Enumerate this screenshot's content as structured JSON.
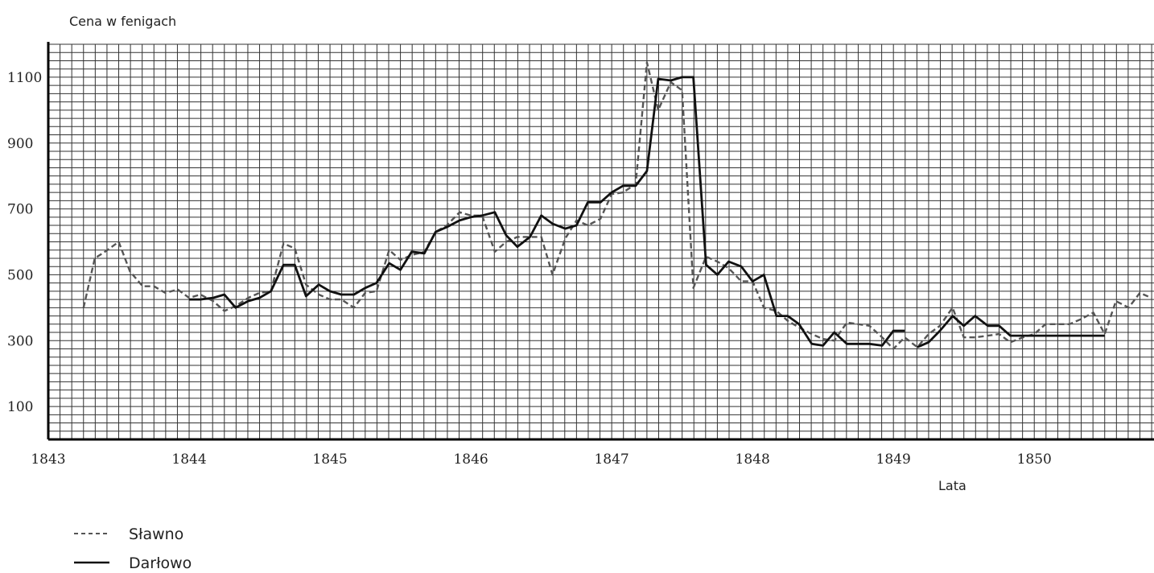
{
  "chart_data": {
    "type": "line",
    "title": "",
    "ylabel": "Cena w fenigach",
    "xlabel": "Lata",
    "x_ticks": [
      1843,
      1844,
      1845,
      1846,
      1847,
      1848,
      1849,
      1850
    ],
    "y_ticks": [
      100,
      300,
      500,
      700,
      900,
      1100
    ],
    "xlim": [
      1843,
      1850.85
    ],
    "ylim": [
      0,
      1200
    ],
    "grid": true,
    "legend_position": "bottom-left",
    "series": [
      {
        "name": "Sławno",
        "style": "dashed",
        "color": "#555555",
        "points": [
          [
            1843.25,
            400
          ],
          [
            1843.33,
            550
          ],
          [
            1843.42,
            575
          ],
          [
            1843.5,
            600
          ],
          [
            1843.58,
            510
          ],
          [
            1843.67,
            465
          ],
          [
            1843.75,
            465
          ],
          [
            1843.83,
            445
          ],
          [
            1843.92,
            455
          ],
          [
            1844.0,
            430
          ],
          [
            1844.08,
            440
          ],
          [
            1844.17,
            420
          ],
          [
            1844.25,
            390
          ],
          [
            1844.33,
            405
          ],
          [
            1844.42,
            430
          ],
          [
            1844.5,
            445
          ],
          [
            1844.58,
            450
          ],
          [
            1844.67,
            595
          ],
          [
            1844.75,
            580
          ],
          [
            1844.83,
            470
          ],
          [
            1844.92,
            440
          ],
          [
            1845.0,
            425
          ],
          [
            1845.08,
            425
          ],
          [
            1845.17,
            400
          ],
          [
            1845.25,
            445
          ],
          [
            1845.33,
            450
          ],
          [
            1845.42,
            575
          ],
          [
            1845.5,
            545
          ],
          [
            1845.58,
            560
          ],
          [
            1845.67,
            570
          ],
          [
            1845.75,
            630
          ],
          [
            1845.83,
            650
          ],
          [
            1845.92,
            690
          ],
          [
            1846.0,
            680
          ],
          [
            1846.08,
            680
          ],
          [
            1846.17,
            570
          ],
          [
            1846.25,
            600
          ],
          [
            1846.33,
            615
          ],
          [
            1846.42,
            615
          ],
          [
            1846.5,
            615
          ],
          [
            1846.58,
            500
          ],
          [
            1846.67,
            610
          ],
          [
            1846.75,
            665
          ],
          [
            1846.83,
            650
          ],
          [
            1846.92,
            670
          ],
          [
            1847.0,
            745
          ],
          [
            1847.08,
            750
          ],
          [
            1847.17,
            775
          ],
          [
            1847.25,
            1145
          ],
          [
            1847.33,
            1000
          ],
          [
            1847.42,
            1085
          ],
          [
            1847.5,
            1060
          ],
          [
            1847.58,
            460
          ],
          [
            1847.67,
            555
          ],
          [
            1847.75,
            540
          ],
          [
            1847.83,
            520
          ],
          [
            1847.92,
            480
          ],
          [
            1848.0,
            480
          ],
          [
            1848.08,
            400
          ],
          [
            1848.17,
            390
          ],
          [
            1848.25,
            360
          ],
          [
            1848.33,
            340
          ],
          [
            1848.42,
            320
          ],
          [
            1848.5,
            305
          ],
          [
            1848.58,
            300
          ],
          [
            1848.67,
            355
          ],
          [
            1848.75,
            350
          ],
          [
            1848.83,
            345
          ],
          [
            1848.92,
            310
          ],
          [
            1849.0,
            275
          ],
          [
            1849.08,
            310
          ],
          [
            1849.17,
            280
          ],
          [
            1849.25,
            320
          ],
          [
            1849.33,
            345
          ],
          [
            1849.42,
            400
          ],
          [
            1849.5,
            310
          ],
          [
            1849.58,
            310
          ],
          [
            1849.67,
            315
          ],
          [
            1849.75,
            320
          ],
          [
            1849.83,
            295
          ],
          [
            1849.92,
            310
          ],
          [
            1850.0,
            320
          ],
          [
            1850.08,
            350
          ],
          [
            1850.17,
            350
          ],
          [
            1850.25,
            350
          ],
          [
            1850.33,
            365
          ],
          [
            1850.42,
            385
          ],
          [
            1850.5,
            320
          ],
          [
            1850.58,
            420
          ],
          [
            1850.67,
            400
          ],
          [
            1850.75,
            445
          ],
          [
            1850.83,
            430
          ]
        ]
      },
      {
        "name": "Darłowo",
        "style": "solid",
        "color": "#111111",
        "points": [
          [
            1844.0,
            425
          ],
          [
            1844.08,
            425
          ],
          [
            1844.17,
            430
          ],
          [
            1844.25,
            440
          ],
          [
            1844.33,
            400
          ],
          [
            1844.42,
            420
          ],
          [
            1844.5,
            430
          ],
          [
            1844.58,
            450
          ],
          [
            1844.67,
            530
          ],
          [
            1844.75,
            530
          ],
          [
            1844.83,
            435
          ],
          [
            1844.92,
            470
          ],
          [
            1845.0,
            450
          ],
          [
            1845.08,
            440
          ],
          [
            1845.17,
            440
          ],
          [
            1845.25,
            460
          ],
          [
            1845.33,
            475
          ],
          [
            1845.42,
            535
          ],
          [
            1845.5,
            515
          ],
          [
            1845.58,
            570
          ],
          [
            1845.67,
            565
          ],
          [
            1845.75,
            630
          ],
          [
            1845.83,
            645
          ],
          [
            1845.92,
            665
          ],
          [
            1846.0,
            675
          ],
          [
            1846.08,
            680
          ],
          [
            1846.17,
            690
          ],
          [
            1846.25,
            620
          ],
          [
            1846.33,
            585
          ],
          [
            1846.42,
            615
          ],
          [
            1846.5,
            680
          ],
          [
            1846.58,
            655
          ],
          [
            1846.67,
            640
          ],
          [
            1846.75,
            650
          ],
          [
            1846.83,
            720
          ],
          [
            1846.92,
            720
          ],
          [
            1847.0,
            750
          ],
          [
            1847.08,
            770
          ],
          [
            1847.17,
            770
          ],
          [
            1847.25,
            815
          ],
          [
            1847.33,
            1095
          ],
          [
            1847.42,
            1090
          ],
          [
            1847.5,
            1100
          ],
          [
            1847.58,
            1100
          ],
          [
            1847.67,
            530
          ],
          [
            1847.75,
            500
          ],
          [
            1847.83,
            540
          ],
          [
            1847.92,
            525
          ],
          [
            1848.0,
            480
          ],
          [
            1848.08,
            500
          ],
          [
            1848.17,
            375
          ],
          [
            1848.25,
            375
          ],
          [
            1848.33,
            350
          ],
          [
            1848.42,
            290
          ],
          [
            1848.5,
            285
          ],
          [
            1848.58,
            325
          ],
          [
            1848.67,
            290
          ],
          [
            1848.75,
            290
          ],
          [
            1848.83,
            290
          ],
          [
            1848.92,
            285
          ],
          [
            1849.0,
            330
          ],
          [
            1849.08,
            330
          ],
          null,
          [
            1849.17,
            280
          ],
          [
            1849.25,
            295
          ],
          [
            1849.33,
            330
          ],
          [
            1849.42,
            375
          ],
          [
            1849.5,
            345
          ],
          [
            1849.58,
            375
          ],
          [
            1849.67,
            345
          ],
          [
            1849.75,
            345
          ],
          [
            1849.83,
            315
          ],
          [
            1849.92,
            315
          ],
          [
            1850.0,
            315
          ],
          [
            1850.08,
            315
          ],
          [
            1850.17,
            315
          ],
          [
            1850.25,
            315
          ],
          [
            1850.33,
            315
          ],
          [
            1850.42,
            315
          ],
          [
            1850.5,
            315
          ]
        ]
      }
    ]
  }
}
